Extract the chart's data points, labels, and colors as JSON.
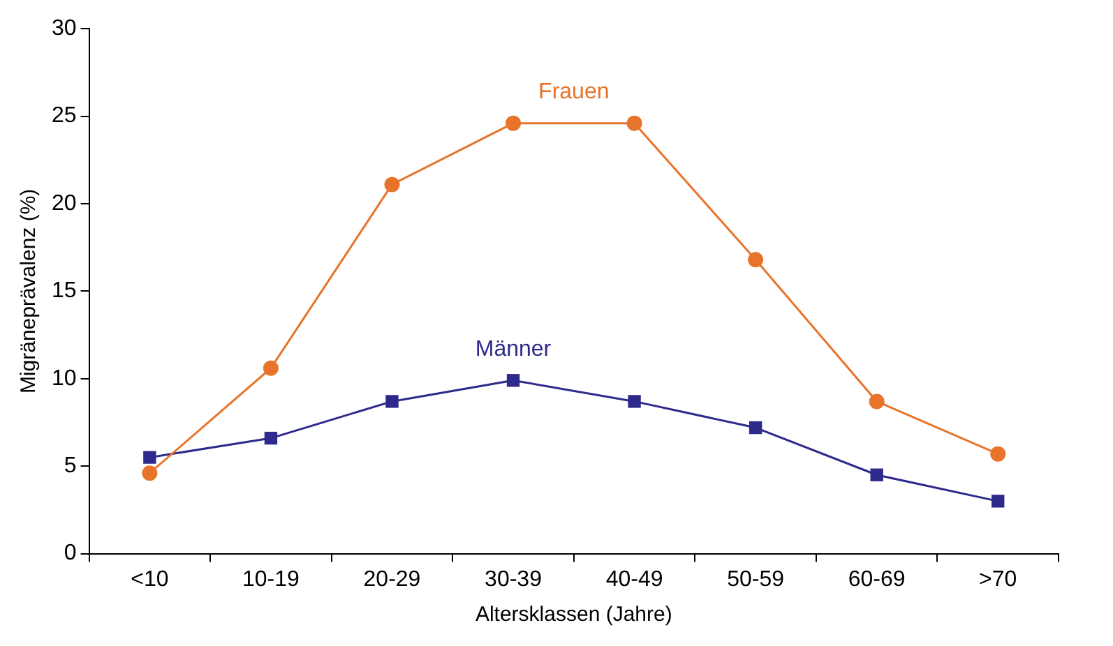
{
  "chart_data": {
    "type": "line",
    "xlabel": "Altersklassen (Jahre)",
    "ylabel": "Migräneprävalenz (%)",
    "categories": [
      "<10",
      "10-19",
      "20-29",
      "30-39",
      "40-49",
      "50-59",
      "60-69",
      ">70"
    ],
    "series": [
      {
        "name": "Frauen",
        "color": "#e8732a",
        "marker": "circle",
        "values": [
          4.6,
          10.6,
          21.1,
          24.6,
          24.6,
          16.8,
          8.7,
          5.7
        ]
      },
      {
        "name": "Männer",
        "color": "#2e2a8c",
        "marker": "square",
        "values": [
          5.5,
          6.6,
          8.7,
          9.9,
          8.7,
          7.2,
          4.5,
          3.0
        ]
      }
    ],
    "ylim": [
      0,
      30
    ],
    "yticks": [
      0,
      5,
      10,
      15,
      20,
      25,
      30
    ],
    "grid": false,
    "legend": false
  }
}
